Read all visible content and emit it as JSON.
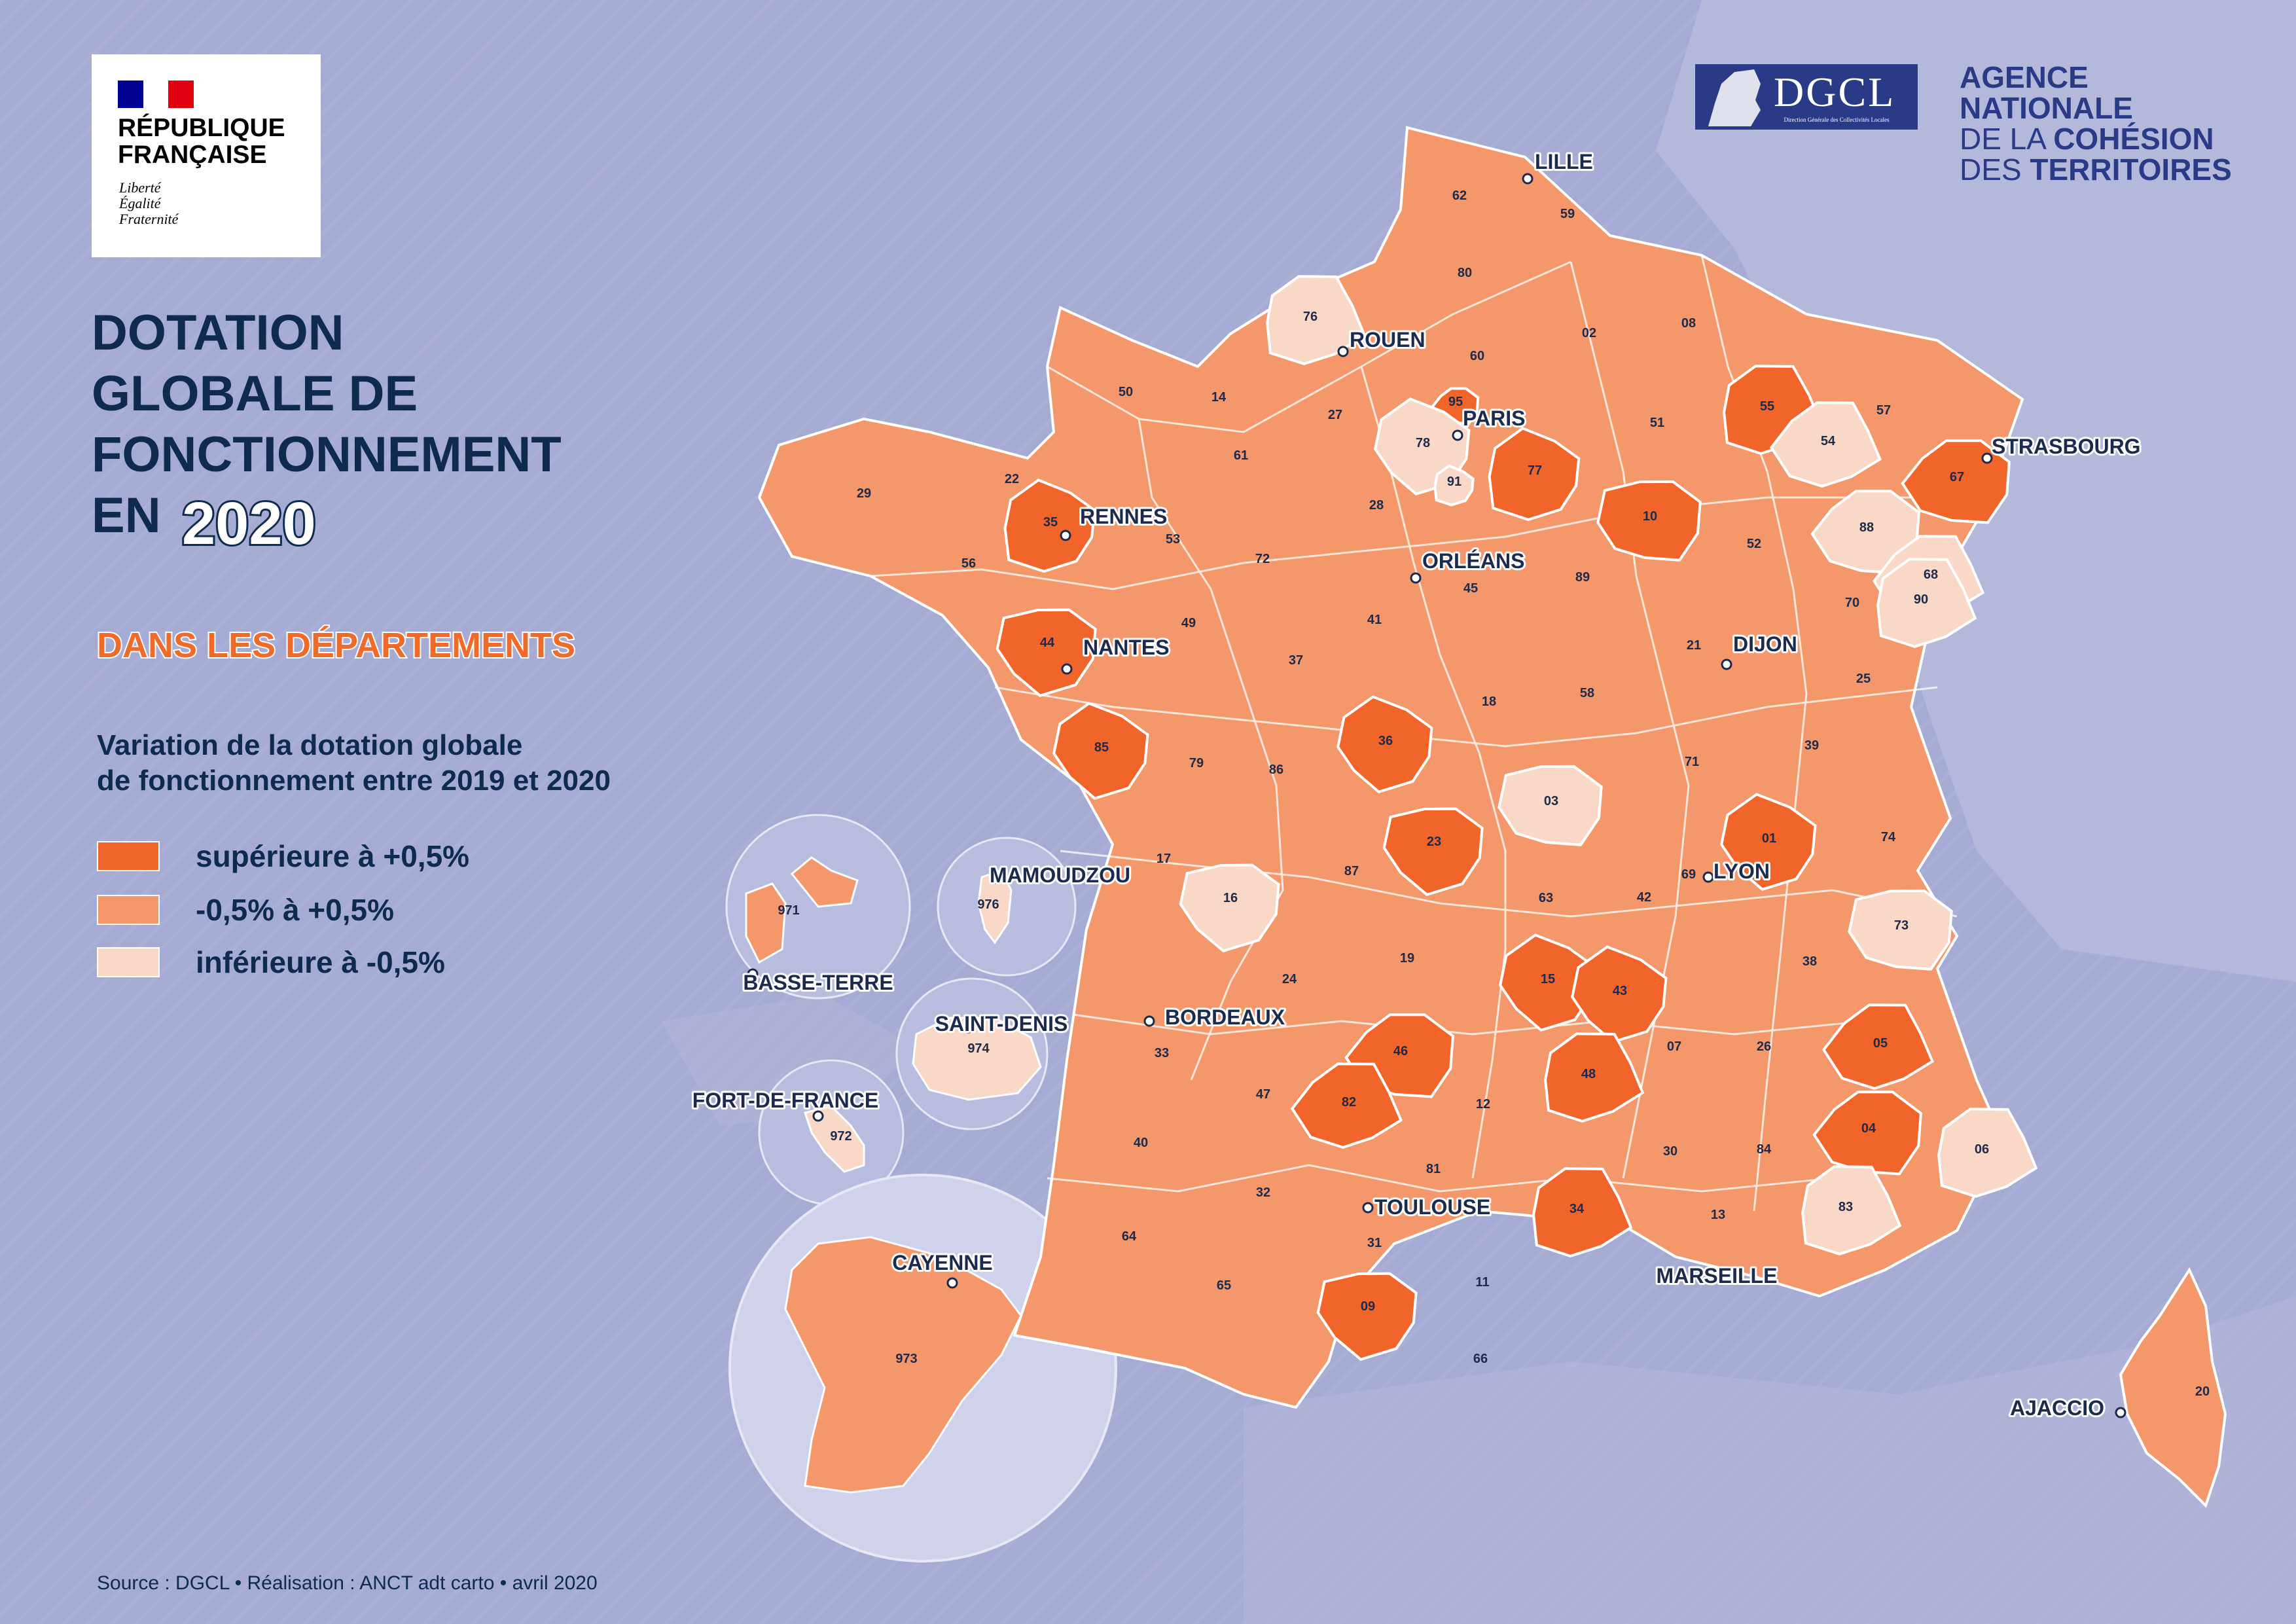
{
  "logo_rf": {
    "name": "RÉPUBLIQUE\nFRANÇAISE",
    "motto": "Liberté\nÉgalité\nFraternité",
    "flag_colors": [
      "#000091",
      "#ffffff",
      "#e1000f"
    ]
  },
  "logo_dgcl": {
    "text": "DGCL",
    "subtitle": "Direction Générale des Collectivités Locales"
  },
  "logo_anct": {
    "line1": "AGENCE",
    "line2": "NATIONALE",
    "line3_light": "DE LA ",
    "line3_bold": "COHÉSION",
    "line4_light": "DES ",
    "line4_bold": "TERRITOIRES"
  },
  "title": "DOTATION\nGLOBALE DE\nFONCTIONNEMENT\nEN",
  "title_year": "2020",
  "subtitle": "DANS LES DÉPARTEMENTS",
  "legend": {
    "title": "Variation de la dotation globale\nde fonctionnement entre 2019 et 2020",
    "items": [
      {
        "label": "supérieure à +0,5%",
        "color": "#f2652a",
        "class": "high"
      },
      {
        "label": "-0,5% à +0,5%",
        "color": "#f4976a",
        "class": "mid"
      },
      {
        "label": "inférieure à -0,5%",
        "color": "#f9d8c8",
        "class": "low"
      }
    ]
  },
  "colors": {
    "high": "#f2652a",
    "mid": "#f4976a",
    "low": "#f9d8c8",
    "sea": "#a6abd3",
    "border": "#ffffff"
  },
  "departments": [
    {
      "code": "62",
      "class": "mid"
    },
    {
      "code": "59",
      "class": "mid"
    },
    {
      "code": "80",
      "class": "mid"
    },
    {
      "code": "76",
      "class": "low"
    },
    {
      "code": "02",
      "class": "mid"
    },
    {
      "code": "08",
      "class": "mid"
    },
    {
      "code": "60",
      "class": "mid"
    },
    {
      "code": "50",
      "class": "mid"
    },
    {
      "code": "14",
      "class": "mid"
    },
    {
      "code": "27",
      "class": "mid"
    },
    {
      "code": "95",
      "class": "high"
    },
    {
      "code": "78",
      "class": "low"
    },
    {
      "code": "91",
      "class": "low"
    },
    {
      "code": "77",
      "class": "high"
    },
    {
      "code": "51",
      "class": "mid"
    },
    {
      "code": "55",
      "class": "high"
    },
    {
      "code": "57",
      "class": "mid"
    },
    {
      "code": "54",
      "class": "low"
    },
    {
      "code": "67",
      "class": "high"
    },
    {
      "code": "29",
      "class": "mid"
    },
    {
      "code": "22",
      "class": "mid"
    },
    {
      "code": "56",
      "class": "mid"
    },
    {
      "code": "35",
      "class": "high"
    },
    {
      "code": "53",
      "class": "mid"
    },
    {
      "code": "61",
      "class": "mid"
    },
    {
      "code": "72",
      "class": "mid"
    },
    {
      "code": "28",
      "class": "mid"
    },
    {
      "code": "45",
      "class": "mid"
    },
    {
      "code": "10",
      "class": "high"
    },
    {
      "code": "52",
      "class": "mid"
    },
    {
      "code": "88",
      "class": "low"
    },
    {
      "code": "68",
      "class": "low"
    },
    {
      "code": "90",
      "class": "low"
    },
    {
      "code": "44",
      "class": "high"
    },
    {
      "code": "49",
      "class": "mid"
    },
    {
      "code": "37",
      "class": "mid"
    },
    {
      "code": "41",
      "class": "mid"
    },
    {
      "code": "89",
      "class": "mid"
    },
    {
      "code": "21",
      "class": "mid"
    },
    {
      "code": "70",
      "class": "mid"
    },
    {
      "code": "25",
      "class": "mid"
    },
    {
      "code": "85",
      "class": "high"
    },
    {
      "code": "79",
      "class": "mid"
    },
    {
      "code": "86",
      "class": "mid"
    },
    {
      "code": "36",
      "class": "high"
    },
    {
      "code": "18",
      "class": "mid"
    },
    {
      "code": "58",
      "class": "mid"
    },
    {
      "code": "71",
      "class": "mid"
    },
    {
      "code": "39",
      "class": "mid"
    },
    {
      "code": "03",
      "class": "low"
    },
    {
      "code": "23",
      "class": "high"
    },
    {
      "code": "17",
      "class": "mid"
    },
    {
      "code": "16",
      "class": "low"
    },
    {
      "code": "87",
      "class": "mid"
    },
    {
      "code": "63",
      "class": "mid"
    },
    {
      "code": "42",
      "class": "mid"
    },
    {
      "code": "69",
      "class": "mid"
    },
    {
      "code": "01",
      "class": "high"
    },
    {
      "code": "74",
      "class": "mid"
    },
    {
      "code": "73",
      "class": "low"
    },
    {
      "code": "19",
      "class": "mid"
    },
    {
      "code": "24",
      "class": "mid"
    },
    {
      "code": "15",
      "class": "high"
    },
    {
      "code": "43",
      "class": "high"
    },
    {
      "code": "38",
      "class": "mid"
    },
    {
      "code": "33",
      "class": "mid"
    },
    {
      "code": "46",
      "class": "high"
    },
    {
      "code": "07",
      "class": "mid"
    },
    {
      "code": "26",
      "class": "mid"
    },
    {
      "code": "05",
      "class": "high"
    },
    {
      "code": "47",
      "class": "mid"
    },
    {
      "code": "48",
      "class": "high"
    },
    {
      "code": "12",
      "class": "mid"
    },
    {
      "code": "04",
      "class": "high"
    },
    {
      "code": "06",
      "class": "low"
    },
    {
      "code": "40",
      "class": "mid"
    },
    {
      "code": "82",
      "class": "high"
    },
    {
      "code": "30",
      "class": "mid"
    },
    {
      "code": "84",
      "class": "mid"
    },
    {
      "code": "81",
      "class": "mid"
    },
    {
      "code": "32",
      "class": "mid"
    },
    {
      "code": "34",
      "class": "high"
    },
    {
      "code": "13",
      "class": "mid"
    },
    {
      "code": "83",
      "class": "low"
    },
    {
      "code": "64",
      "class": "mid"
    },
    {
      "code": "31",
      "class": "mid"
    },
    {
      "code": "65",
      "class": "mid"
    },
    {
      "code": "11",
      "class": "mid"
    },
    {
      "code": "09",
      "class": "high"
    },
    {
      "code": "66",
      "class": "mid"
    },
    {
      "code": "20",
      "class": "mid"
    },
    {
      "code": "971",
      "class": "mid"
    },
    {
      "code": "976",
      "class": "low"
    },
    {
      "code": "974",
      "class": "low"
    },
    {
      "code": "972",
      "class": "low"
    },
    {
      "code": "973",
      "class": "mid"
    }
  ],
  "cities": [
    "LILLE",
    "ROUEN",
    "PARIS",
    "STRASBOURG",
    "RENNES",
    "ORLÉANS",
    "NANTES",
    "DIJON",
    "LYON",
    "BORDEAUX",
    "TOULOUSE",
    "MARSEILLE",
    "AJACCIO",
    "MAMOUDZOU",
    "BASSE-TERRE",
    "SAINT-DENIS",
    "FORT-DE-FRANCE",
    "CAYENNE"
  ],
  "source": "Source : DGCL • Réalisation : ANCT adt carto • avril 2020"
}
